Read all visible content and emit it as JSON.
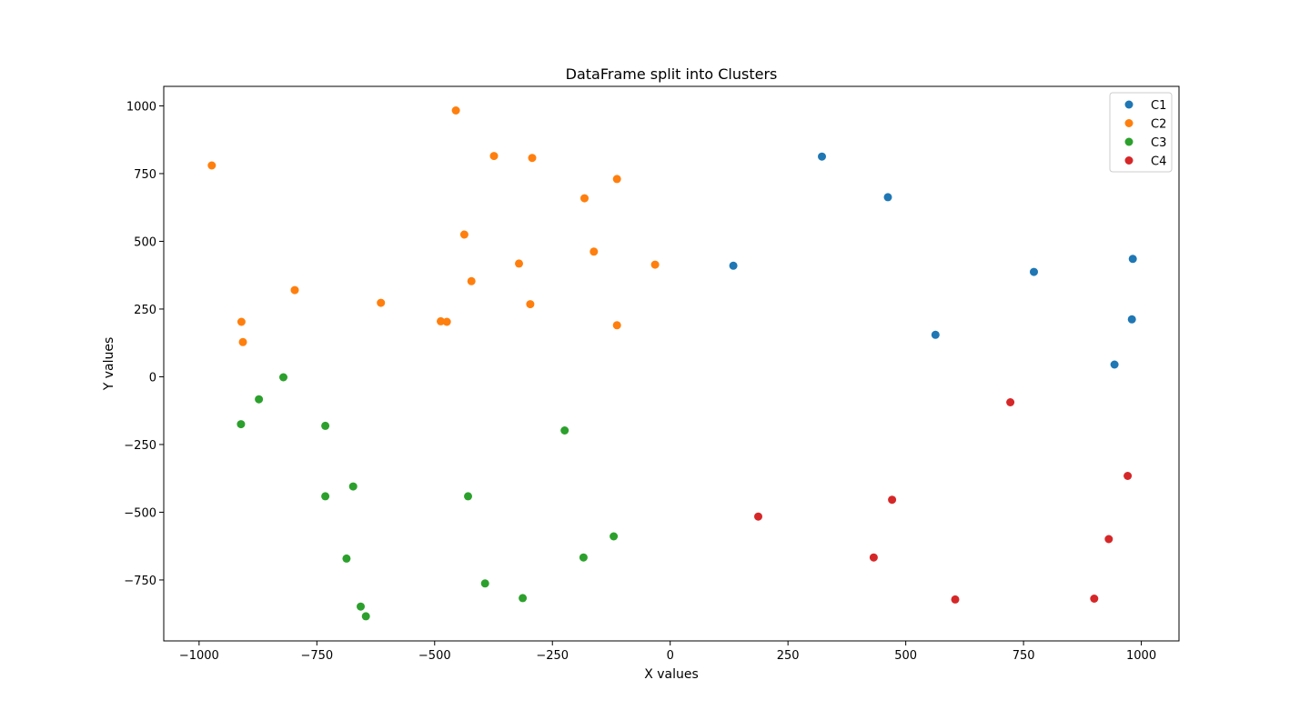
{
  "chart_data": {
    "type": "scatter",
    "title": "DataFrame split into Clusters",
    "xlabel": "X values",
    "ylabel": "Y values",
    "xlim": [
      -1075,
      1080
    ],
    "ylim": [
      -975,
      1072
    ],
    "xticks": [
      -1000,
      -750,
      -500,
      -250,
      0,
      250,
      500,
      750,
      1000
    ],
    "yticks": [
      -750,
      -500,
      -250,
      0,
      250,
      500,
      750,
      1000
    ],
    "xtick_labels": [
      "−1000",
      "−750",
      "−500",
      "−250",
      "0",
      "250",
      "500",
      "750",
      "1000"
    ],
    "ytick_labels": [
      "−750",
      "−500",
      "−250",
      "0",
      "250",
      "500",
      "750",
      "1000"
    ],
    "grid": false,
    "legend_position": "top-right",
    "series": [
      {
        "name": "C1",
        "color": "#1f77b4",
        "points": [
          [
            322,
            813
          ],
          [
            462,
            663
          ],
          [
            134,
            410
          ],
          [
            772,
            387
          ],
          [
            982,
            435
          ],
          [
            980,
            212
          ],
          [
            563,
            155
          ],
          [
            943,
            45
          ]
        ]
      },
      {
        "name": "C2",
        "color": "#ff7f0e",
        "points": [
          [
            -455,
            983
          ],
          [
            -374,
            815
          ],
          [
            -293,
            808
          ],
          [
            -973,
            780
          ],
          [
            -182,
            659
          ],
          [
            -113,
            730
          ],
          [
            -437,
            525
          ],
          [
            -162,
            462
          ],
          [
            -321,
            418
          ],
          [
            -32,
            414
          ],
          [
            -797,
            320
          ],
          [
            -422,
            353
          ],
          [
            -614,
            273
          ],
          [
            -297,
            268
          ],
          [
            -910,
            203
          ],
          [
            -487,
            205
          ],
          [
            -474,
            203
          ],
          [
            -113,
            190
          ],
          [
            -907,
            128
          ]
        ]
      },
      {
        "name": "C3",
        "color": "#2ca02c",
        "points": [
          [
            -821,
            -2
          ],
          [
            -873,
            -83
          ],
          [
            -911,
            -175
          ],
          [
            -732,
            -181
          ],
          [
            -224,
            -198
          ],
          [
            -673,
            -405
          ],
          [
            -732,
            -441
          ],
          [
            -429,
            -441
          ],
          [
            -120,
            -589
          ],
          [
            -184,
            -667
          ],
          [
            -687,
            -671
          ],
          [
            -393,
            -763
          ],
          [
            -313,
            -817
          ],
          [
            -657,
            -848
          ],
          [
            -646,
            -884
          ]
        ]
      },
      {
        "name": "C4",
        "color": "#d62728",
        "points": [
          [
            722,
            -94
          ],
          [
            971,
            -366
          ],
          [
            471,
            -454
          ],
          [
            187,
            -516
          ],
          [
            931,
            -599
          ],
          [
            432,
            -667
          ],
          [
            605,
            -822
          ],
          [
            900,
            -819
          ]
        ]
      }
    ]
  }
}
